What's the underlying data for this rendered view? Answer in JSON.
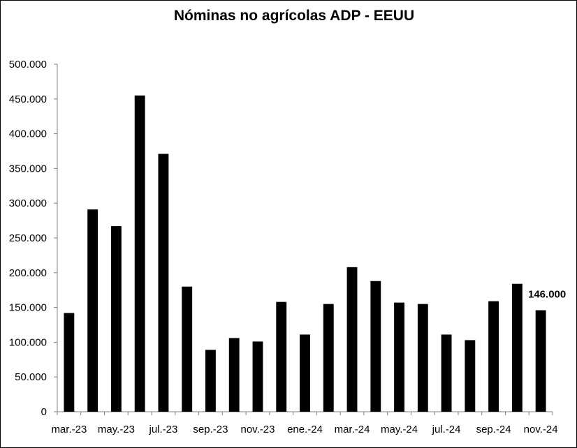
{
  "chart_data": {
    "type": "bar",
    "title": "Nóminas no agrícolas ADP - EEUU",
    "xlabel": "",
    "ylabel": "",
    "ylim": [
      0,
      500000
    ],
    "y_ticks": [
      0,
      50000,
      100000,
      150000,
      200000,
      250000,
      300000,
      350000,
      400000,
      450000,
      500000
    ],
    "y_tick_labels": [
      "0",
      "50.000",
      "100.000",
      "150.000",
      "200.000",
      "250.000",
      "300.000",
      "350.000",
      "400.000",
      "450.000",
      "500.000"
    ],
    "categories": [
      "mar.-23",
      "abr.-23",
      "may.-23",
      "jun.-23",
      "jul.-23",
      "ago.-23",
      "sep.-23",
      "oct.-23",
      "nov.-23",
      "dic.-23",
      "ene.-24",
      "feb.-24",
      "mar.-24",
      "abr.-24",
      "may.-24",
      "jun.-24",
      "jul.-24",
      "ago.-24",
      "sep.-24",
      "oct.-24",
      "nov.-24"
    ],
    "visible_x_tick_labels": [
      "mar.-23",
      "may.-23",
      "jul.-23",
      "sep.-23",
      "nov.-23",
      "ene.-24",
      "mar.-24",
      "may.-24",
      "jul.-24",
      "sep.-24",
      "nov.-24"
    ],
    "values": [
      142000,
      291000,
      267000,
      455000,
      371000,
      180000,
      89000,
      106000,
      101000,
      158000,
      111000,
      155000,
      208000,
      188000,
      157000,
      155000,
      111000,
      103000,
      159000,
      184000,
      146000
    ],
    "data_label": {
      "category": "nov.-24",
      "text": "146.000"
    },
    "bar_color": "#000000",
    "grid": false,
    "legend": "none"
  }
}
